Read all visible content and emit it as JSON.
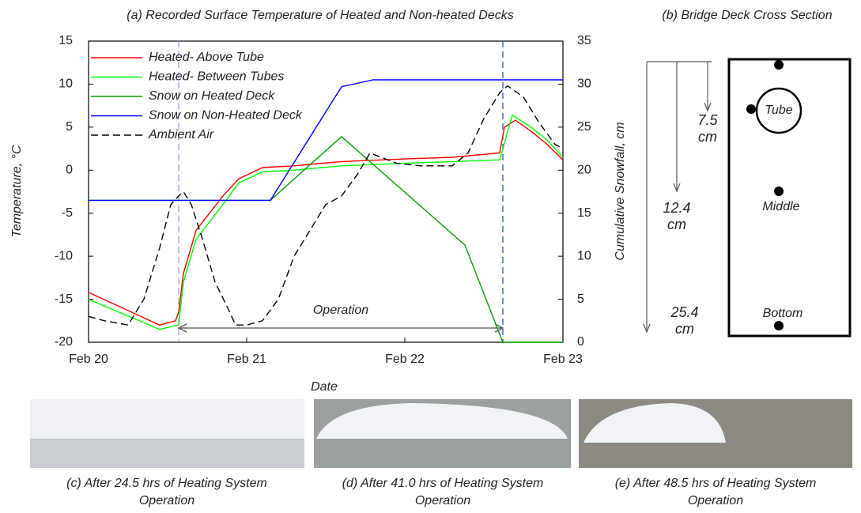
{
  "chart_data": {
    "type": "line",
    "title": "(a) Recorded Surface Temperature of Heated and Non-heated Decks",
    "xlabel": "Date",
    "ylabel": "Temperature, °C",
    "y2label": "Cumulative Snowfall, cm",
    "xlim": [
      0,
      3
    ],
    "xticks": [
      {
        "value": 0,
        "label": "Feb 20"
      },
      {
        "value": 1,
        "label": "Feb 21"
      },
      {
        "value": 2,
        "label": "Feb 22"
      },
      {
        "value": 3,
        "label": "Feb 23"
      }
    ],
    "ylim": [
      -20,
      15
    ],
    "yticks": [
      -20,
      -15,
      -10,
      -5,
      0,
      5,
      10,
      15
    ],
    "y2lim": [
      0,
      35
    ],
    "y2ticks": [
      0,
      5,
      10,
      15,
      20,
      25,
      30,
      35
    ],
    "legend": "upper left",
    "series": [
      {
        "name": "Heated- Above Tube",
        "color": "#ff0000",
        "style": "solid",
        "x": [
          0,
          0.45,
          0.55,
          0.57,
          0.6,
          0.68,
          0.85,
          0.95,
          1.1,
          1.3,
          1.6,
          2.0,
          2.3,
          2.6,
          2.63,
          2.7,
          2.8,
          2.9,
          3
        ],
        "values": [
          -14.2,
          -18,
          -17.5,
          -16.5,
          -12,
          -7,
          -3,
          -1,
          0.3,
          0.5,
          1,
          1.3,
          1.5,
          2,
          5,
          5.8,
          4.5,
          3,
          1.2
        ]
      },
      {
        "name": "Heated- Between Tubes",
        "color": "#00ff00",
        "style": "solid",
        "x": [
          0,
          0.45,
          0.57,
          0.6,
          0.68,
          0.85,
          0.95,
          1.1,
          1.3,
          1.6,
          2.0,
          2.3,
          2.6,
          2.68,
          2.8,
          2.9,
          3
        ],
        "values": [
          -15,
          -18.5,
          -18,
          -13,
          -8,
          -4,
          -1.5,
          -0.2,
          0,
          0.5,
          0.8,
          1,
          1.2,
          6.4,
          5,
          3.5,
          1.5
        ]
      },
      {
        "name": "Snow on Heated Deck",
        "color": "#00a000",
        "style": "solid",
        "axis": "y2",
        "x": [
          0,
          1.15,
          1.6,
          2.38,
          2.62,
          3
        ],
        "values": [
          16.5,
          16.5,
          23.9,
          11.3,
          0,
          0
        ]
      },
      {
        "name": "Snow on Non-Heated Deck",
        "color": "#0000ff",
        "style": "solid",
        "axis": "y2",
        "x": [
          0,
          1.15,
          1.6,
          1.8,
          3
        ],
        "values": [
          16.5,
          16.5,
          29.7,
          30.5,
          30.5
        ]
      },
      {
        "name": "Ambient Air",
        "color": "#000000",
        "style": "dashed",
        "x": [
          0,
          0.1,
          0.25,
          0.35,
          0.45,
          0.52,
          0.57,
          0.6,
          0.65,
          0.72,
          0.8,
          0.88,
          0.93,
          1.0,
          1.1,
          1.2,
          1.3,
          1.4,
          1.5,
          1.6,
          1.7,
          1.78,
          1.85,
          1.95,
          2.1,
          2.3,
          2.4,
          2.5,
          2.6,
          2.65,
          2.75,
          2.85,
          2.95,
          3
        ],
        "values": [
          -17,
          -17.5,
          -18,
          -15,
          -9,
          -4,
          -3,
          -2.5,
          -4,
          -8,
          -13,
          -16,
          -18,
          -18,
          -17.5,
          -15,
          -10,
          -7,
          -4,
          -3,
          -0.5,
          2,
          1.5,
          0.8,
          0.5,
          0.5,
          2,
          6,
          9,
          9.8,
          8.5,
          5.5,
          3,
          2.5
        ]
      }
    ],
    "vlines": [
      0.57,
      2.62
    ],
    "annotation": "Operation"
  },
  "cross_section": {
    "title": "(b) Bridge Deck Cross Section",
    "depths": [
      "7.5 cm",
      "12.4 cm",
      "25.4 cm"
    ],
    "points": [
      "Tube",
      "Middle",
      "Bottom"
    ]
  },
  "photos": [
    "(c) After 24.5 hrs of Heating System Operation",
    "(d) After 41.0 hrs of Heating System Operation",
    "(e) After 48.5 hrs of Heating System Operation"
  ]
}
